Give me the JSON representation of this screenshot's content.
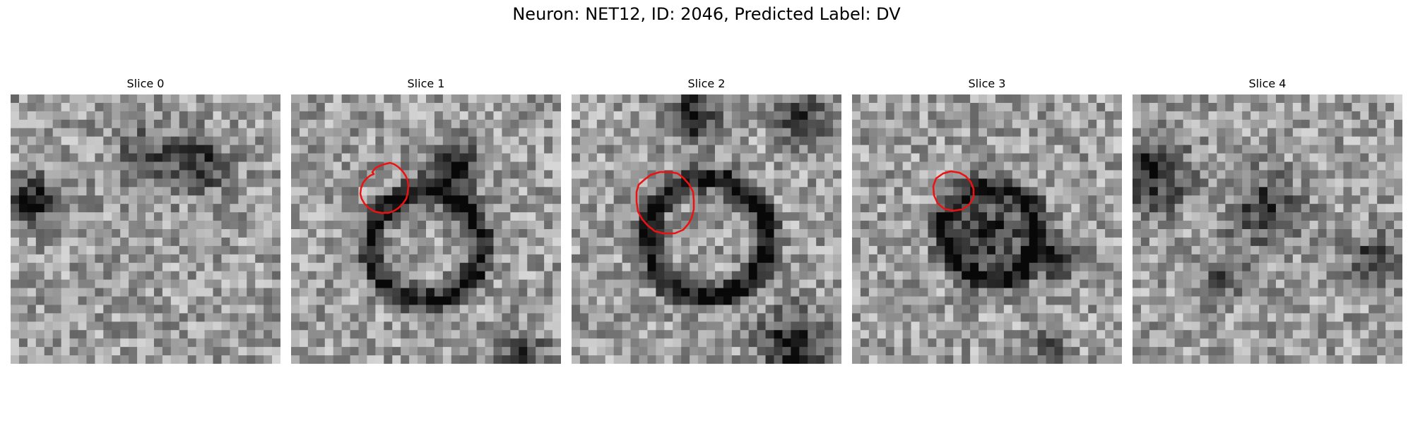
{
  "figure": {
    "title": "Neuron: NET12, ID: 2046, Predicted Label: DV"
  },
  "colors": {
    "contour": "#ee1111",
    "background": "#ffffff"
  },
  "slices": [
    {
      "title": "Slice 0",
      "has_contour": false
    },
    {
      "title": "Slice 1",
      "has_contour": true
    },
    {
      "title": "Slice 2",
      "has_contour": true
    },
    {
      "title": "Slice 3",
      "has_contour": true
    },
    {
      "title": "Slice 4",
      "has_contour": false
    }
  ]
}
